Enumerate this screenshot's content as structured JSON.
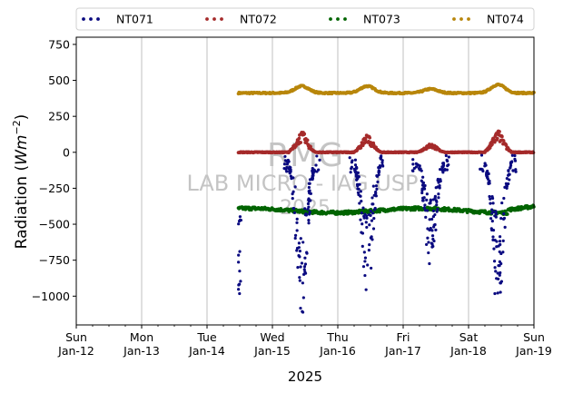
{
  "chart_data": {
    "type": "scatter",
    "ylabel_prefix": "Radiation (",
    "ylabel_unit_base": "Wm",
    "ylabel_unit_exp": "−2",
    "ylabel_suffix": ")",
    "xlabel": "2025",
    "ylim": [
      -1200,
      800
    ],
    "yticks": [
      750,
      500,
      250,
      0,
      -250,
      -500,
      -750,
      -1000
    ],
    "ytick_labels": [
      "750",
      "500",
      "250",
      "0",
      "−250",
      "−500",
      "−750",
      "−1000"
    ],
    "xlim_days": [
      0,
      7
    ],
    "xticks": [
      {
        "day": 0,
        "line1": "Sun",
        "line2": "Jan-12"
      },
      {
        "day": 1,
        "line1": "Mon",
        "line2": "Jan-13"
      },
      {
        "day": 2,
        "line1": "Tue",
        "line2": "Jan-14"
      },
      {
        "day": 3,
        "line1": "Wed",
        "line2": "Jan-15"
      },
      {
        "day": 4,
        "line1": "Thu",
        "line2": "Jan-16"
      },
      {
        "day": 5,
        "line1": "Fri",
        "line2": "Jan-17"
      },
      {
        "day": 6,
        "line1": "Sat",
        "line2": "Jan-18"
      },
      {
        "day": 7,
        "line1": "Sun",
        "line2": "Jan-19"
      }
    ],
    "grid": "vertical",
    "legend_position": "top, above plot",
    "watermark": [
      "RMG",
      "LAB MICRO - IAG USP",
      "2025"
    ],
    "series": [
      {
        "name": "NT071",
        "color": "#0a0a80",
        "profile": "neg_spikes"
      },
      {
        "name": "NT072",
        "color": "#a52a2a",
        "profile": "bumps"
      },
      {
        "name": "NT073",
        "color": "#006400",
        "profile": "flat_low"
      },
      {
        "name": "NT074",
        "color": "#b8860b",
        "profile": "high_band"
      }
    ],
    "data_start_day": 2.48,
    "days": [
      {
        "noon": 3.45,
        "nt071_min": -1150,
        "nt072_peak": 130,
        "nt074_peak": 460
      },
      {
        "noon": 4.45,
        "nt071_min": -1020,
        "nt072_peak": 110,
        "nt074_peak": 460
      },
      {
        "noon": 5.42,
        "nt071_min": -840,
        "nt072_peak": 60,
        "nt074_peak": 440
      },
      {
        "noon": 6.45,
        "nt071_min": -1150,
        "nt072_peak": 140,
        "nt074_peak": 470
      }
    ]
  }
}
